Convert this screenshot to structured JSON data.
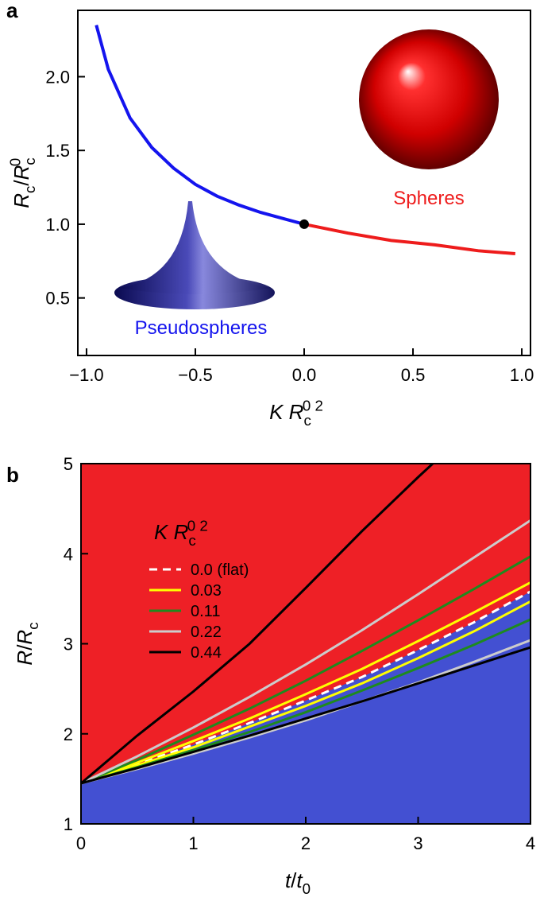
{
  "chart_data": [
    {
      "type": "line",
      "panel": "a",
      "xlabel": [
        {
          "text": "K",
          "italic": true
        },
        {
          "text": " R",
          "italic": true
        },
        {
          "text": "c",
          "pos": "sub"
        },
        {
          "text": "0 2",
          "pos": "sup"
        }
      ],
      "ylabel": [
        {
          "text": "R",
          "italic": true
        },
        {
          "text": "c",
          "pos": "sub"
        },
        {
          "text": "/"
        },
        {
          "text": "R",
          "italic": true
        },
        {
          "text": "c",
          "pos": "sub"
        },
        {
          "text": "0",
          "pos": "sup"
        }
      ],
      "xlim": [
        -1.04,
        1.04
      ],
      "ylim": [
        0.11,
        2.45
      ],
      "xticks": [
        {
          "value": -1,
          "label": "−1.0"
        },
        {
          "value": -0.5,
          "label": "−0.5"
        },
        {
          "value": 0,
          "label": "0.0"
        },
        0.5,
        {
          "value": 1,
          "label": "1.0"
        }
      ],
      "yticks": [
        0.5,
        {
          "value": 1,
          "label": "1.0"
        },
        1.5,
        {
          "value": 2,
          "label": "2.0"
        }
      ],
      "series": [
        {
          "color": "#1414ee",
          "x": [
            -0.955,
            -0.9,
            -0.8,
            -0.7,
            -0.6,
            -0.5,
            -0.4,
            -0.3,
            -0.2,
            -0.1,
            0
          ],
          "values": [
            2.35,
            2.05,
            1.72,
            1.52,
            1.38,
            1.27,
            1.19,
            1.13,
            1.08,
            1.04,
            1.0
          ]
        },
        {
          "color": "#ee1c1c",
          "x": [
            0,
            0.2,
            0.4,
            0.6,
            0.8,
            0.97
          ],
          "values": [
            1.0,
            0.94,
            0.89,
            0.86,
            0.82,
            0.8
          ]
        }
      ],
      "points": [
        {
          "x": 0,
          "y": 1,
          "color": "#000000"
        }
      ],
      "annotations": [
        {
          "text": "Pseudospheres",
          "color": "#1414ee"
        },
        {
          "text": "Spheres",
          "color": "#ee1c1c"
        }
      ]
    },
    {
      "type": "line",
      "panel": "b",
      "xlabel": [
        {
          "text": "t",
          "italic": true
        },
        {
          "text": "/"
        },
        {
          "text": "t",
          "italic": true
        },
        {
          "text": "0",
          "pos": "sub"
        }
      ],
      "ylabel": [
        {
          "text": "R",
          "italic": true
        },
        {
          "text": "/"
        },
        {
          "text": "R",
          "italic": true
        },
        {
          "text": "c",
          "pos": "sub"
        }
      ],
      "xlim": [
        0,
        4
      ],
      "ylim": [
        1,
        5
      ],
      "xticks": [
        0,
        1,
        2,
        3,
        4
      ],
      "yticks": [
        1,
        2,
        3,
        4,
        5
      ],
      "region_colors": {
        "above": "#ee2026",
        "below": "#4350d2"
      },
      "legend_title": [
        {
          "text": "K",
          "italic": true
        },
        {
          "text": " R",
          "italic": true
        },
        {
          "text": "c",
          "pos": "sub"
        },
        {
          "text": "0 2",
          "pos": "sup"
        }
      ],
      "legend": "upper left",
      "series": [
        {
          "name": "0.0 (flat)",
          "color": "#ffffff",
          "dashed": true,
          "branches": [
            {
              "x": [
                0,
                0.5,
                1,
                1.5,
                2,
                2.5,
                3,
                3.5,
                4
              ],
              "values": [
                1.45,
                1.66,
                1.88,
                2.12,
                2.37,
                2.63,
                2.93,
                3.24,
                3.58
              ]
            }
          ]
        },
        {
          "name": "0.03",
          "color": "#ffff00",
          "branches": [
            {
              "x": [
                0,
                0.5,
                1,
                1.5,
                2,
                2.5,
                3,
                3.5,
                4
              ],
              "values": [
                1.45,
                1.68,
                1.92,
                2.17,
                2.44,
                2.72,
                3.03,
                3.35,
                3.68
              ]
            },
            {
              "x": [
                0,
                0.5,
                1,
                1.5,
                2,
                2.5,
                3,
                3.5,
                4
              ],
              "values": [
                1.45,
                1.65,
                1.85,
                2.08,
                2.31,
                2.56,
                2.84,
                3.14,
                3.47
              ]
            }
          ]
        },
        {
          "name": "0.11",
          "color": "#1e8a1e",
          "branches": [
            {
              "x": [
                0,
                0.5,
                1,
                1.5,
                2,
                2.5,
                3,
                3.5,
                4
              ],
              "values": [
                1.45,
                1.71,
                1.99,
                2.28,
                2.59,
                2.92,
                3.26,
                3.61,
                3.97
              ]
            },
            {
              "x": [
                0,
                0.5,
                1,
                1.5,
                2,
                2.5,
                3,
                3.5,
                4
              ],
              "values": [
                1.45,
                1.63,
                1.82,
                2.02,
                2.24,
                2.48,
                2.73,
                2.99,
                3.27
              ]
            }
          ]
        },
        {
          "name": "0.22",
          "color": "#cccccc",
          "branches": [
            {
              "x": [
                0,
                0.5,
                1,
                1.5,
                2,
                2.5,
                3,
                3.5,
                4
              ],
              "values": [
                1.45,
                1.75,
                2.07,
                2.41,
                2.77,
                3.15,
                3.55,
                3.96,
                4.37
              ]
            },
            {
              "x": [
                0,
                0.5,
                1,
                1.5,
                2,
                2.5,
                3,
                3.5,
                4
              ],
              "values": [
                1.45,
                1.61,
                1.78,
                1.96,
                2.15,
                2.36,
                2.57,
                2.8,
                3.04
              ]
            }
          ]
        },
        {
          "name": "0.44",
          "color": "#000000",
          "branches": [
            {
              "x": [
                0,
                0.5,
                1,
                1.5,
                2,
                2.5,
                3,
                3.13
              ],
              "values": [
                1.45,
                1.98,
                2.47,
                3.0,
                3.62,
                4.25,
                4.85,
                5.0
              ]
            },
            {
              "x": [
                0,
                0.5,
                1,
                1.5,
                2,
                2.5,
                3,
                3.5,
                4
              ],
              "values": [
                1.45,
                1.62,
                1.8,
                1.98,
                2.17,
                2.36,
                2.56,
                2.76,
                2.96
              ]
            }
          ]
        }
      ]
    }
  ]
}
